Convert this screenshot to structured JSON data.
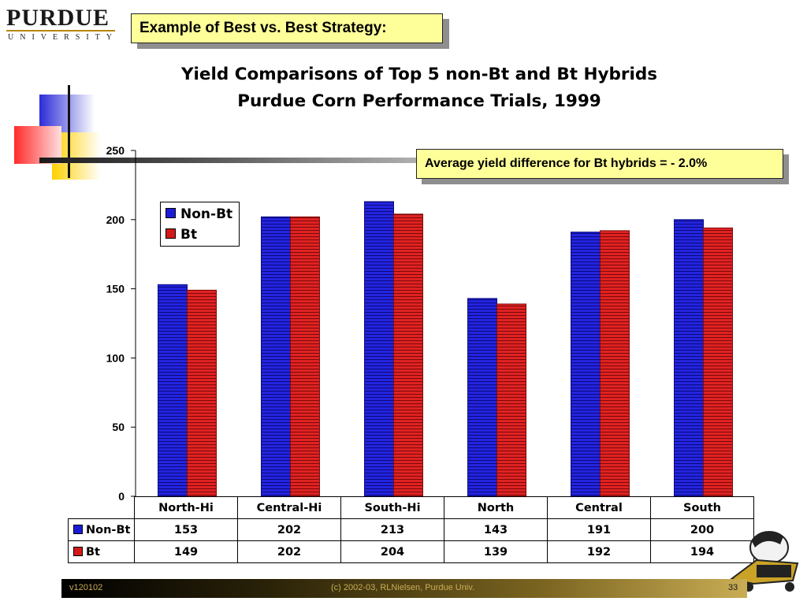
{
  "logo": {
    "word": "PURDUE",
    "sub": "UNIVERSITY"
  },
  "strategy_label": "Example of Best vs. Best Strategy:",
  "title_line1": "Yield Comparisons of Top 5 non-Bt and Bt Hybrids",
  "title_line2": "Purdue Corn Performance Trials, 1999",
  "note": "Average yield difference for Bt hybrids = - 2.0%",
  "colors": {
    "non_bt": "#1c1cd6",
    "bt": "#d21a1a",
    "accent": "#ffff99"
  },
  "chart_data": {
    "type": "bar",
    "categories": [
      "North-Hi",
      "Central-Hi",
      "South-Hi",
      "North",
      "Central",
      "South"
    ],
    "series": [
      {
        "name": "Non-Bt",
        "values": [
          153,
          202,
          213,
          143,
          191,
          200
        ]
      },
      {
        "name": "Bt",
        "values": [
          149,
          202,
          204,
          139,
          192,
          194
        ]
      }
    ],
    "ylim": [
      0,
      250
    ],
    "yticks": [
      "0",
      "50",
      "100",
      "150",
      "200",
      "250"
    ],
    "legend": "upper-left",
    "grid": false
  },
  "table": {
    "headers": [
      "North-Hi",
      "Central-Hi",
      "South-Hi",
      "North",
      "Central",
      "South"
    ],
    "rows": [
      {
        "label": "Non-Bt",
        "values": [
          "153",
          "202",
          "213",
          "143",
          "191",
          "200"
        ]
      },
      {
        "label": "Bt",
        "values": [
          "149",
          "202",
          "204",
          "139",
          "192",
          "194"
        ]
      }
    ]
  },
  "footer": {
    "version": "v120102",
    "copyright": "(c) 2002-03, RLNielsen, Purdue Univ.",
    "page": "33"
  }
}
